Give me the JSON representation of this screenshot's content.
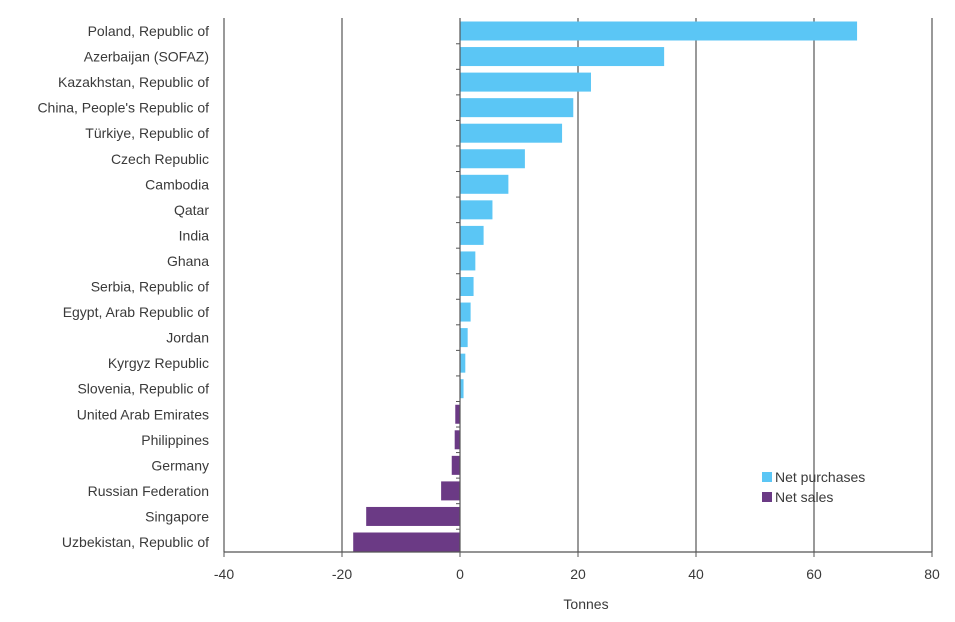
{
  "chart_data": {
    "type": "bar",
    "orientation": "horizontal",
    "title": "",
    "xlabel": "Tonnes",
    "ylabel": "",
    "xlim": [
      -40,
      80
    ],
    "xticks": [
      -40,
      -20,
      0,
      20,
      40,
      60,
      80
    ],
    "grid": true,
    "legend_position": "bottom-right",
    "colors": {
      "net_purchases": "#5bc6f5",
      "net_sales": "#6b3a85",
      "grid": "#999999",
      "axis": "#555555"
    },
    "legend": [
      {
        "name": "Net purchases",
        "color_key": "net_purchases"
      },
      {
        "name": "Net sales",
        "color_key": "net_sales"
      }
    ],
    "categories": [
      "Poland, Republic of",
      "Azerbaijan (SOFAZ)",
      "Kazakhstan, Republic of",
      "China, People's Republic of",
      "Türkiye, Republic of",
      "Czech Republic",
      "Cambodia",
      "Qatar",
      "India",
      "Ghana",
      "Serbia, Republic of",
      "Egypt, Arab Republic of",
      "Jordan",
      "Kyrgyz Republic",
      "Slovenia, Republic of",
      "United Arab Emirates",
      "Philippines",
      "Germany",
      "Russian Federation",
      "Singapore",
      "Uzbekistan, Republic of"
    ],
    "values": [
      67.3,
      34.6,
      22.2,
      19.2,
      17.3,
      11.0,
      8.2,
      5.5,
      4.0,
      2.6,
      2.3,
      1.8,
      1.3,
      0.9,
      0.6,
      -0.8,
      -0.9,
      -1.4,
      -3.2,
      -15.9,
      -18.1
    ]
  }
}
